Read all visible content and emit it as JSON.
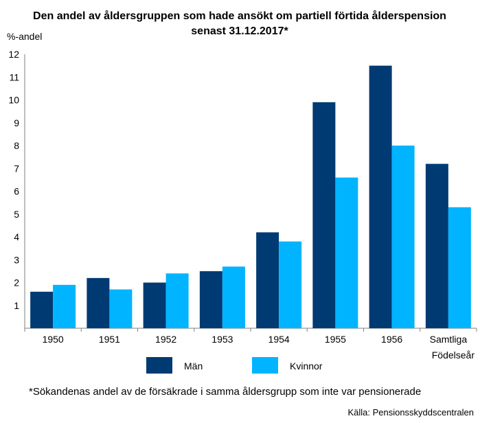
{
  "chart_data": {
    "type": "bar",
    "title_line1": "Den andel av åldersgruppen som hade ansökt om partiell förtida ålderspension",
    "title_line2": "senast 31.12.2017*",
    "ylabel": "%-andel",
    "xlabel": "Födelseår",
    "categories": [
      "1950",
      "1951",
      "1952",
      "1953",
      "1954",
      "1955",
      "1956",
      "Samtliga"
    ],
    "series": [
      {
        "name": "Män",
        "color": "#003a73",
        "values": [
          1.6,
          2.2,
          2.0,
          2.5,
          4.2,
          9.9,
          11.5,
          7.2
        ]
      },
      {
        "name": "Kvinnor",
        "color": "#00b4ff",
        "values": [
          1.9,
          1.7,
          2.4,
          2.7,
          3.8,
          6.6,
          8.0,
          5.3
        ]
      }
    ],
    "yticks": [
      "1",
      "2",
      "3",
      "4",
      "5",
      "6",
      "7",
      "8",
      "9",
      "10",
      "11",
      "12"
    ],
    "ylim": [
      0,
      12
    ],
    "grid": false,
    "legend_position": "bottom"
  },
  "footnote": "*Sökandenas andel av de försäkrade i samma åldersgrupp som inte var pensionerade",
  "source": "Källa: Pensionsskyddscentralen"
}
